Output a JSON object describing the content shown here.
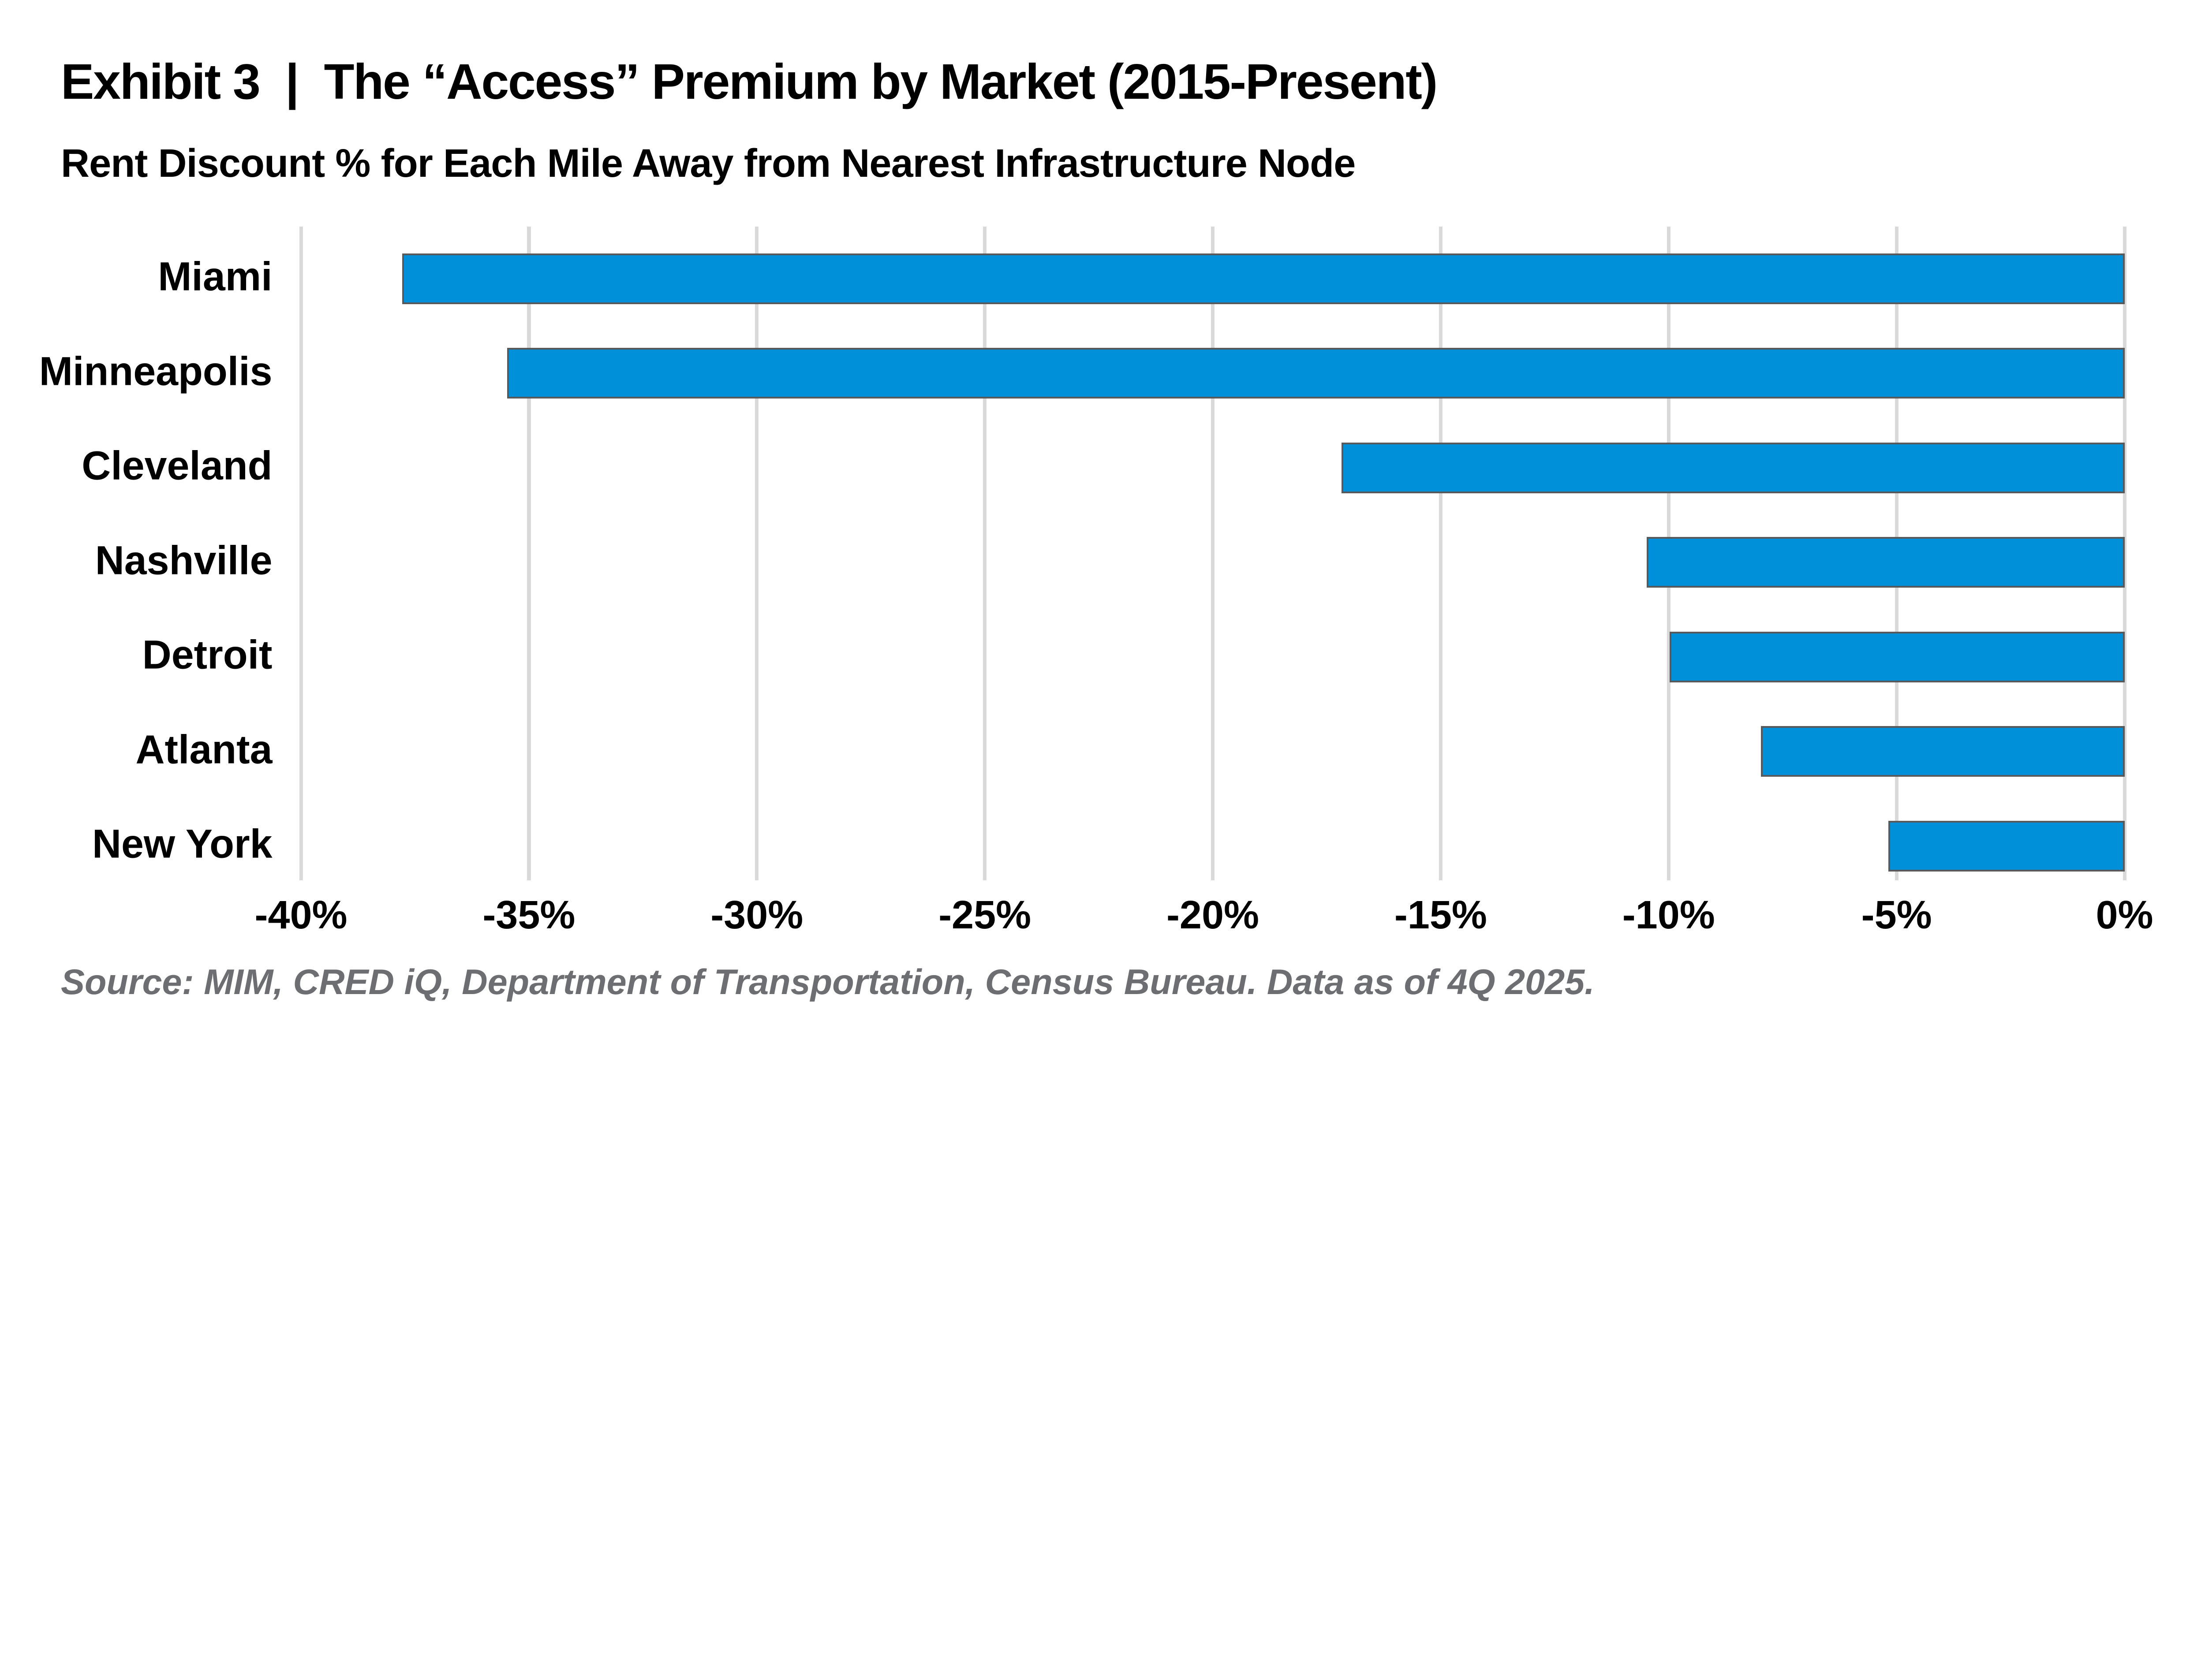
{
  "header": {
    "title": "Exhibit 3  |  The “Access” Premium by Market (2015-Present)",
    "subtitle": "Rent Discount % for Each Mile Away from Nearest Infrastructure Node"
  },
  "footer": {
    "source": "Source: MIM, CRED iQ, Department of Transportation, Census Bureau. Data as of 4Q 2025."
  },
  "chart_data": {
    "type": "bar",
    "orientation": "horizontal",
    "title": "Exhibit 3  |  The “Access” Premium by Market (2015-Present)",
    "subtitle": "Rent Discount % for Each Mile Away from Nearest Infrastructure Node",
    "categories": [
      "Miami",
      "Minneapolis",
      "Cleveland",
      "Nashville",
      "Detroit",
      "Atlanta",
      "New York"
    ],
    "values": [
      -37.7,
      -35.4,
      -17.1,
      -10.4,
      -9.9,
      -7.9,
      -5.1
    ],
    "unit": "%",
    "xlabel": "",
    "ylabel": "",
    "xlim": [
      -40,
      0
    ],
    "x_ticks": [
      "-40%",
      "-35%",
      "-30%",
      "-25%",
      "-20%",
      "-15%",
      "-10%",
      "-5%",
      "0%"
    ],
    "grid": "vertical",
    "legend": "none",
    "bar_color": "#0090DA",
    "bar_border_color": "#58595B",
    "gridline_color": "#d9d9d9",
    "source_note": "Source: MIM, CRED iQ, Department of Transportation, Census Bureau. Data as of 4Q 2025."
  }
}
